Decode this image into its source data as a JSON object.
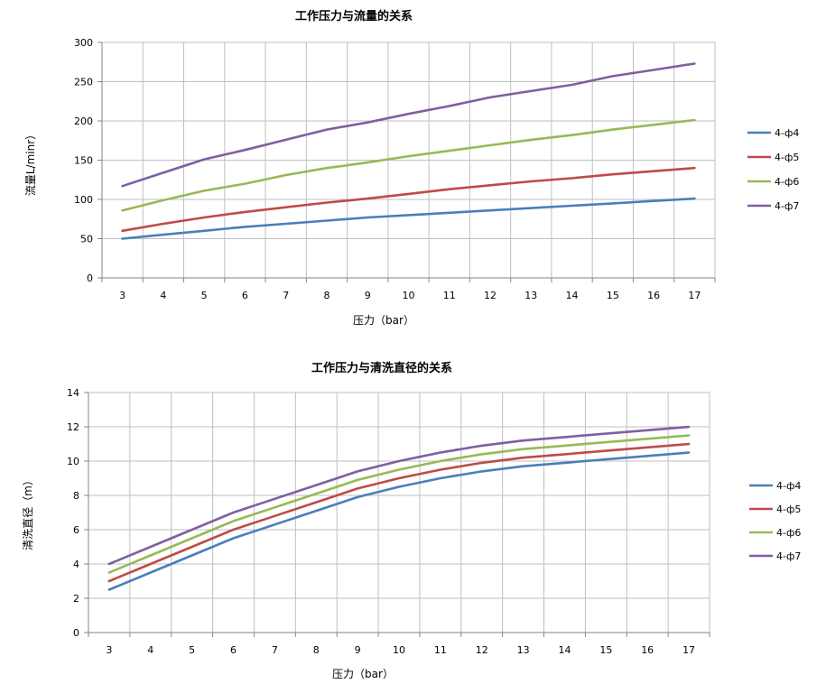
{
  "chart_data": [
    {
      "type": "line",
      "title": "工作压力与流量的关系",
      "xlabel": "压力（bar）",
      "ylabel": "流量L/minr）",
      "categories": [
        "3",
        "4",
        "5",
        "6",
        "7",
        "8",
        "9",
        "10",
        "11",
        "12",
        "13",
        "14",
        "15",
        "16",
        "17"
      ],
      "ylim": [
        0,
        300
      ],
      "yticks": [
        0,
        50,
        100,
        150,
        200,
        250,
        300
      ],
      "grid": true,
      "legend": "right",
      "series": [
        {
          "name": "4-ф4",
          "color": "#4a7ebb",
          "values": [
            50,
            55,
            60,
            65,
            69,
            73,
            77,
            80,
            83,
            86,
            89,
            92,
            95,
            98,
            101
          ]
        },
        {
          "name": "4-ф5",
          "color": "#be4b48",
          "values": [
            60,
            69,
            77,
            84,
            90,
            96,
            101,
            107,
            113,
            118,
            123,
            127,
            132,
            136,
            140
          ]
        },
        {
          "name": "4-ф6",
          "color": "#98b954",
          "values": [
            86,
            99,
            111,
            120,
            131,
            140,
            147,
            155,
            162,
            169,
            176,
            182,
            189,
            195,
            201
          ]
        },
        {
          "name": "4-ф7",
          "color": "#7d60a0",
          "values": [
            117,
            134,
            151,
            163,
            176,
            189,
            198,
            209,
            219,
            230,
            238,
            246,
            257,
            265,
            273
          ]
        }
      ]
    },
    {
      "type": "line",
      "title": "工作压力与清洗直径的关系",
      "xlabel": "压力（bar）",
      "ylabel": "清洗直径（m）",
      "categories": [
        "3",
        "4",
        "5",
        "6",
        "7",
        "8",
        "9",
        "10",
        "11",
        "12",
        "13",
        "14",
        "15",
        "16",
        "17"
      ],
      "ylim": [
        0,
        14
      ],
      "yticks": [
        0,
        2,
        4,
        6,
        8,
        10,
        12,
        14
      ],
      "grid": true,
      "legend": "right",
      "series": [
        {
          "name": "4-ф4",
          "color": "#4a7ebb",
          "values": [
            2.5,
            3.5,
            4.5,
            5.5,
            6.3,
            7.1,
            7.9,
            8.5,
            9.0,
            9.4,
            9.7,
            9.9,
            10.1,
            10.3,
            10.5
          ]
        },
        {
          "name": "4-ф5",
          "color": "#be4b48",
          "values": [
            3.0,
            4.0,
            5.0,
            6.0,
            6.8,
            7.6,
            8.4,
            9.0,
            9.5,
            9.9,
            10.2,
            10.4,
            10.6,
            10.8,
            11.0
          ]
        },
        {
          "name": "4-ф6",
          "color": "#98b954",
          "values": [
            3.5,
            4.5,
            5.5,
            6.5,
            7.3,
            8.1,
            8.9,
            9.5,
            10.0,
            10.4,
            10.7,
            10.9,
            11.1,
            11.3,
            11.5
          ]
        },
        {
          "name": "4-ф7",
          "color": "#7d60a0",
          "values": [
            4.0,
            5.0,
            6.0,
            7.0,
            7.8,
            8.6,
            9.4,
            10.0,
            10.5,
            10.9,
            11.2,
            11.4,
            11.6,
            11.8,
            12.0
          ]
        }
      ]
    }
  ]
}
